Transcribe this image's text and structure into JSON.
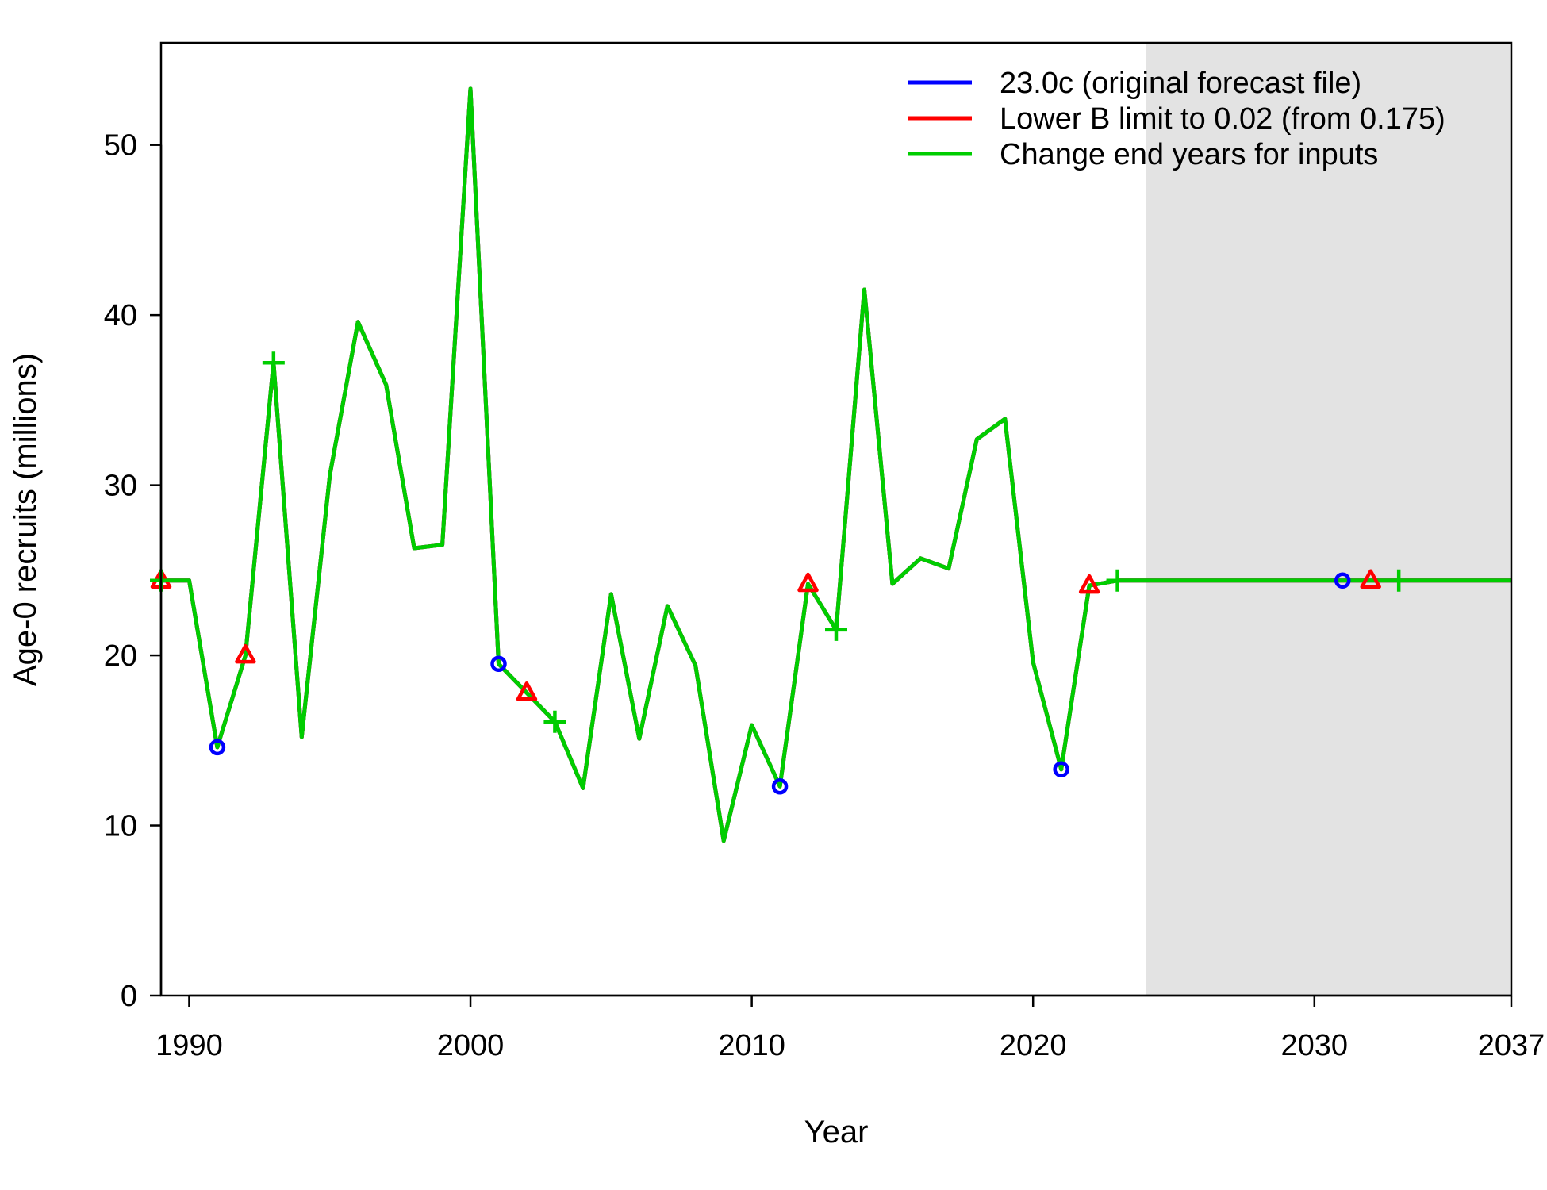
{
  "chart_data": {
    "type": "line",
    "title": "",
    "xlabel": "Year",
    "ylabel": "Age-0 recruits (millions)",
    "xlim": [
      1989,
      2037
    ],
    "ylim": [
      0,
      56
    ],
    "x_ticks": [
      1990,
      2000,
      2010,
      2020,
      2030,
      2037
    ],
    "y_ticks": [
      0,
      10,
      20,
      30,
      40,
      50
    ],
    "grid": false,
    "legend_position": "top-right",
    "forecast_shading_start": 2024,
    "shading_color": "#e3e3e3",
    "x": [
      1989,
      1990,
      1991,
      1992,
      1993,
      1994,
      1995,
      1996,
      1997,
      1998,
      1999,
      2000,
      2001,
      2002,
      2003,
      2004,
      2005,
      2006,
      2007,
      2008,
      2009,
      2010,
      2011,
      2012,
      2013,
      2014,
      2015,
      2016,
      2017,
      2018,
      2019,
      2020,
      2021,
      2022,
      2023,
      2024,
      2025,
      2026,
      2027,
      2028,
      2029,
      2030,
      2031,
      2032,
      2033,
      2034,
      2035,
      2036,
      2037
    ],
    "series": [
      {
        "name": "23.0c (original forecast file)",
        "color": "#0000ff",
        "marker": "circle",
        "marker_years": [
          1991,
          2001,
          2011,
          2021,
          2031
        ],
        "values": [
          24.4,
          24.4,
          14.6,
          20.0,
          37.2,
          15.2,
          30.6,
          39.6,
          35.9,
          26.3,
          26.5,
          53.3,
          19.5,
          17.8,
          16.1,
          12.2,
          23.6,
          15.1,
          22.9,
          19.4,
          9.1,
          15.9,
          12.3,
          24.2,
          21.5,
          41.5,
          24.2,
          25.7,
          25.1,
          32.7,
          33.9,
          19.6,
          13.3,
          24.1,
          24.4,
          24.4,
          24.4,
          24.4,
          24.4,
          24.4,
          24.4,
          24.4,
          24.4,
          24.4,
          24.4,
          24.4,
          24.4,
          24.4,
          24.4
        ]
      },
      {
        "name": "Lower B limit to 0.02 (from 0.175)",
        "color": "#ff0000",
        "marker": "triangle",
        "marker_years": [
          1989,
          1992,
          2002,
          2012,
          2022,
          2032
        ],
        "values": [
          24.4,
          24.4,
          14.6,
          20.0,
          37.2,
          15.2,
          30.6,
          39.6,
          35.9,
          26.3,
          26.5,
          53.3,
          19.5,
          17.8,
          16.1,
          12.2,
          23.6,
          15.1,
          22.9,
          19.4,
          9.1,
          15.9,
          12.3,
          24.2,
          21.5,
          41.5,
          24.2,
          25.7,
          25.1,
          32.7,
          33.9,
          19.6,
          13.3,
          24.1,
          24.4,
          24.4,
          24.4,
          24.4,
          24.4,
          24.4,
          24.4,
          24.4,
          24.4,
          24.4,
          24.4,
          24.4,
          24.4,
          24.4,
          24.4
        ]
      },
      {
        "name": "Change end years for inputs",
        "color": "#00cd00",
        "marker": "plus",
        "marker_years": [
          1989,
          1993,
          2003,
          2013,
          2023,
          2033
        ],
        "values": [
          24.4,
          24.4,
          14.6,
          20.0,
          37.2,
          15.2,
          30.6,
          39.6,
          35.9,
          26.3,
          26.5,
          53.3,
          19.5,
          17.8,
          16.1,
          12.2,
          23.6,
          15.1,
          22.9,
          19.4,
          9.1,
          15.9,
          12.3,
          24.2,
          21.5,
          41.5,
          24.2,
          25.7,
          25.1,
          32.7,
          33.9,
          19.6,
          13.3,
          24.1,
          24.4,
          24.4,
          24.4,
          24.4,
          24.4,
          24.4,
          24.4,
          24.4,
          24.4,
          24.4,
          24.4,
          24.4,
          24.4,
          24.4,
          24.4
        ]
      }
    ]
  }
}
